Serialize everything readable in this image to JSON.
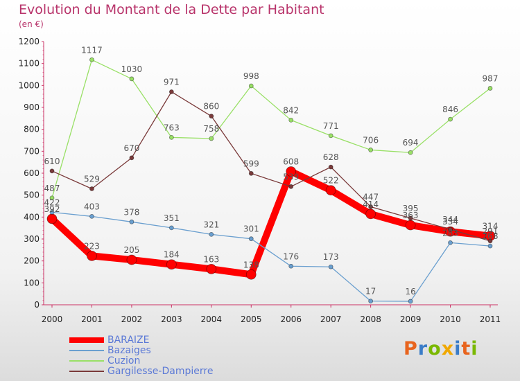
{
  "title": "Evolution du Montant de la Dette par Habitant",
  "subtitle": "(en €)",
  "logo_text": "Proxiti",
  "colors": {
    "title": "#b8336a",
    "axis": "#cc3366",
    "grid": "#d8d8d8",
    "legend_text": "#5b79d6",
    "label_text": "#555555"
  },
  "chart_data": {
    "type": "line",
    "title": "Evolution du Montant de la Dette par Habitant",
    "subtitle": "(en €)",
    "x": [
      "2000",
      "2001",
      "2002",
      "2003",
      "2004",
      "2005",
      "2006",
      "2007",
      "2008",
      "2009",
      "2010",
      "2011"
    ],
    "ylim": [
      0,
      1200
    ],
    "yticks": [
      0,
      100,
      200,
      300,
      400,
      500,
      600,
      700,
      800,
      900,
      1000,
      1100,
      1200
    ],
    "grid": false,
    "legend_position": "bottom-left",
    "series": [
      {
        "name": "BARAIZE",
        "color": "#ff0000",
        "values": [
          392,
          223,
          205,
          184,
          163,
          138,
          608,
          522,
          414,
          363,
          334,
          314
        ]
      },
      {
        "name": "Bazaiges",
        "color": "#6a9fcf",
        "values": [
          422,
          403,
          378,
          351,
          321,
          301,
          176,
          173,
          17,
          16,
          283,
          268
        ]
      },
      {
        "name": "Cuzion",
        "color": "#99e066",
        "values": [
          487,
          1117,
          1030,
          763,
          758,
          998,
          842,
          771,
          706,
          694,
          846,
          987
        ]
      },
      {
        "name": "Gargilesse-Dampierre",
        "color": "#7a3a3a",
        "values": [
          610,
          529,
          670,
          971,
          860,
          599,
          539,
          628,
          447,
          395,
          344,
          291
        ]
      }
    ]
  }
}
